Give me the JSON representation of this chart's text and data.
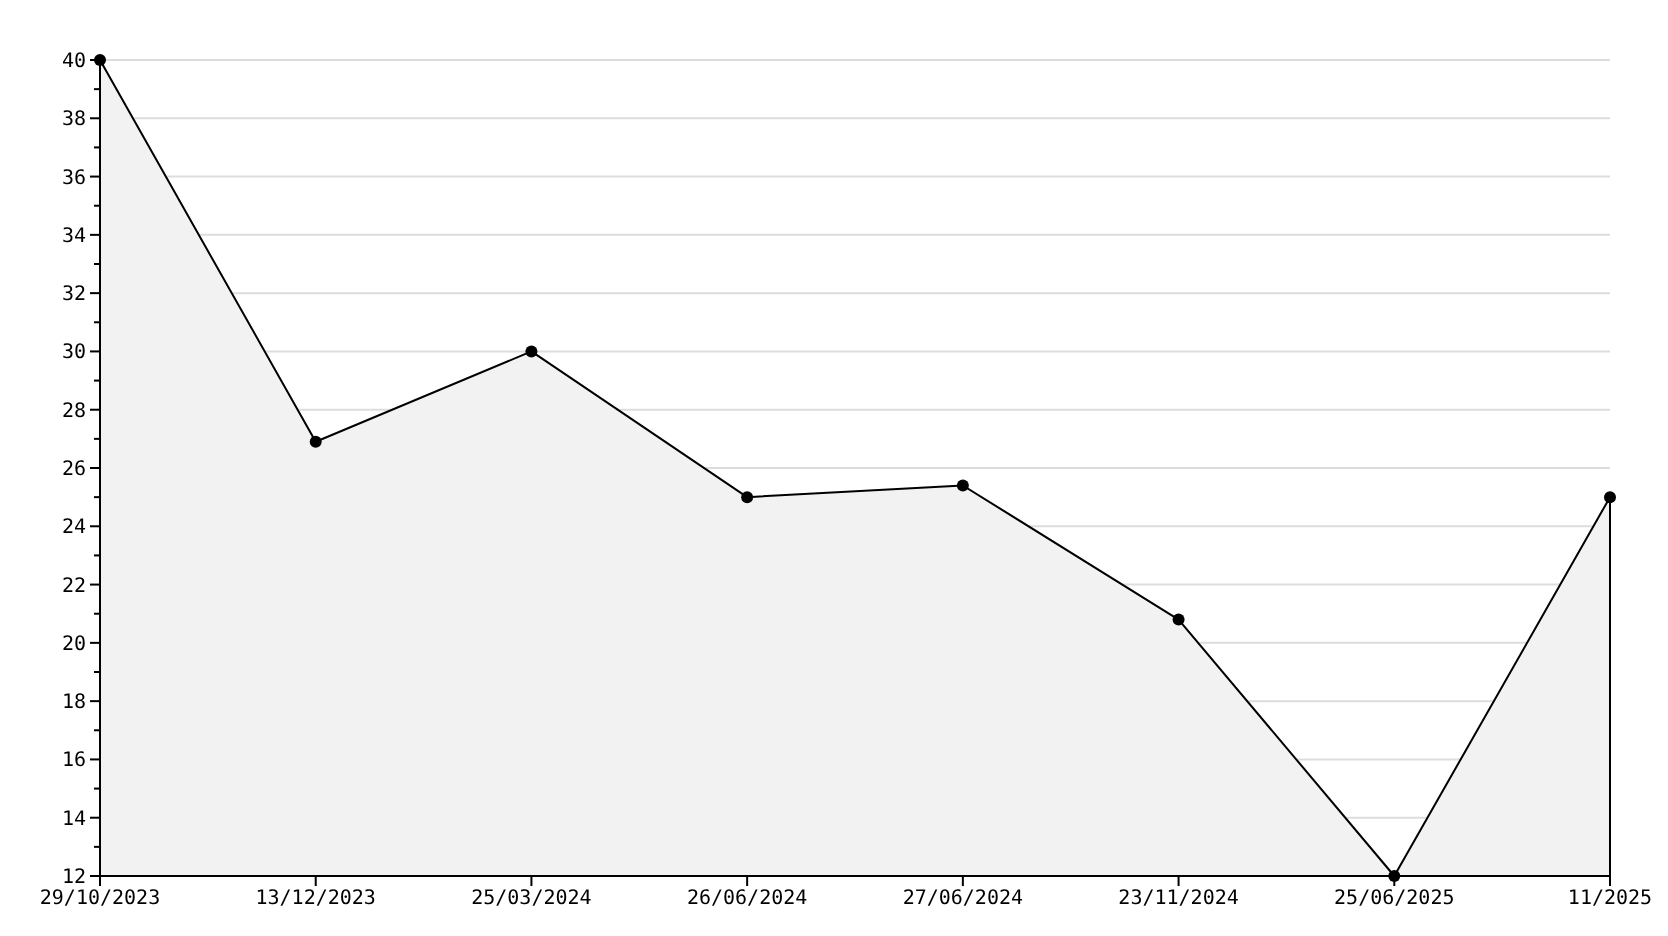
{
  "chart_data": {
    "type": "area",
    "categories": [
      "29/10/2023",
      "13/12/2023",
      "25/03/2024",
      "26/06/2024",
      "27/06/2024",
      "23/11/2024",
      "25/06/2025",
      "11/2025"
    ],
    "series": [
      {
        "color": "#000000",
        "values": [
          40,
          26.9,
          30,
          25,
          25.4,
          20.8,
          12,
          25
        ]
      }
    ],
    "ylim": [
      12,
      40
    ],
    "yticks": [
      12,
      {
        "value": 13,
        "label": null
      },
      14,
      {
        "value": 15,
        "label": null
      },
      16,
      {
        "value": 17,
        "label": null
      },
      18,
      {
        "value": 19,
        "label": null
      },
      20,
      {
        "value": 21,
        "label": null
      },
      22,
      {
        "value": 23,
        "label": null
      },
      24,
      {
        "value": 25,
        "label": null
      },
      26,
      {
        "value": 27,
        "label": null
      },
      28,
      {
        "value": 29,
        "label": null
      },
      30,
      {
        "value": 31,
        "label": null
      },
      32,
      {
        "value": 33,
        "label": null
      },
      34,
      {
        "value": 35,
        "label": null
      },
      36,
      {
        "value": 37,
        "label": null
      },
      38,
      {
        "value": 39,
        "label": null
      },
      40
    ],
    "grid": "y",
    "marker": "circle",
    "line_style": "solid"
  }
}
